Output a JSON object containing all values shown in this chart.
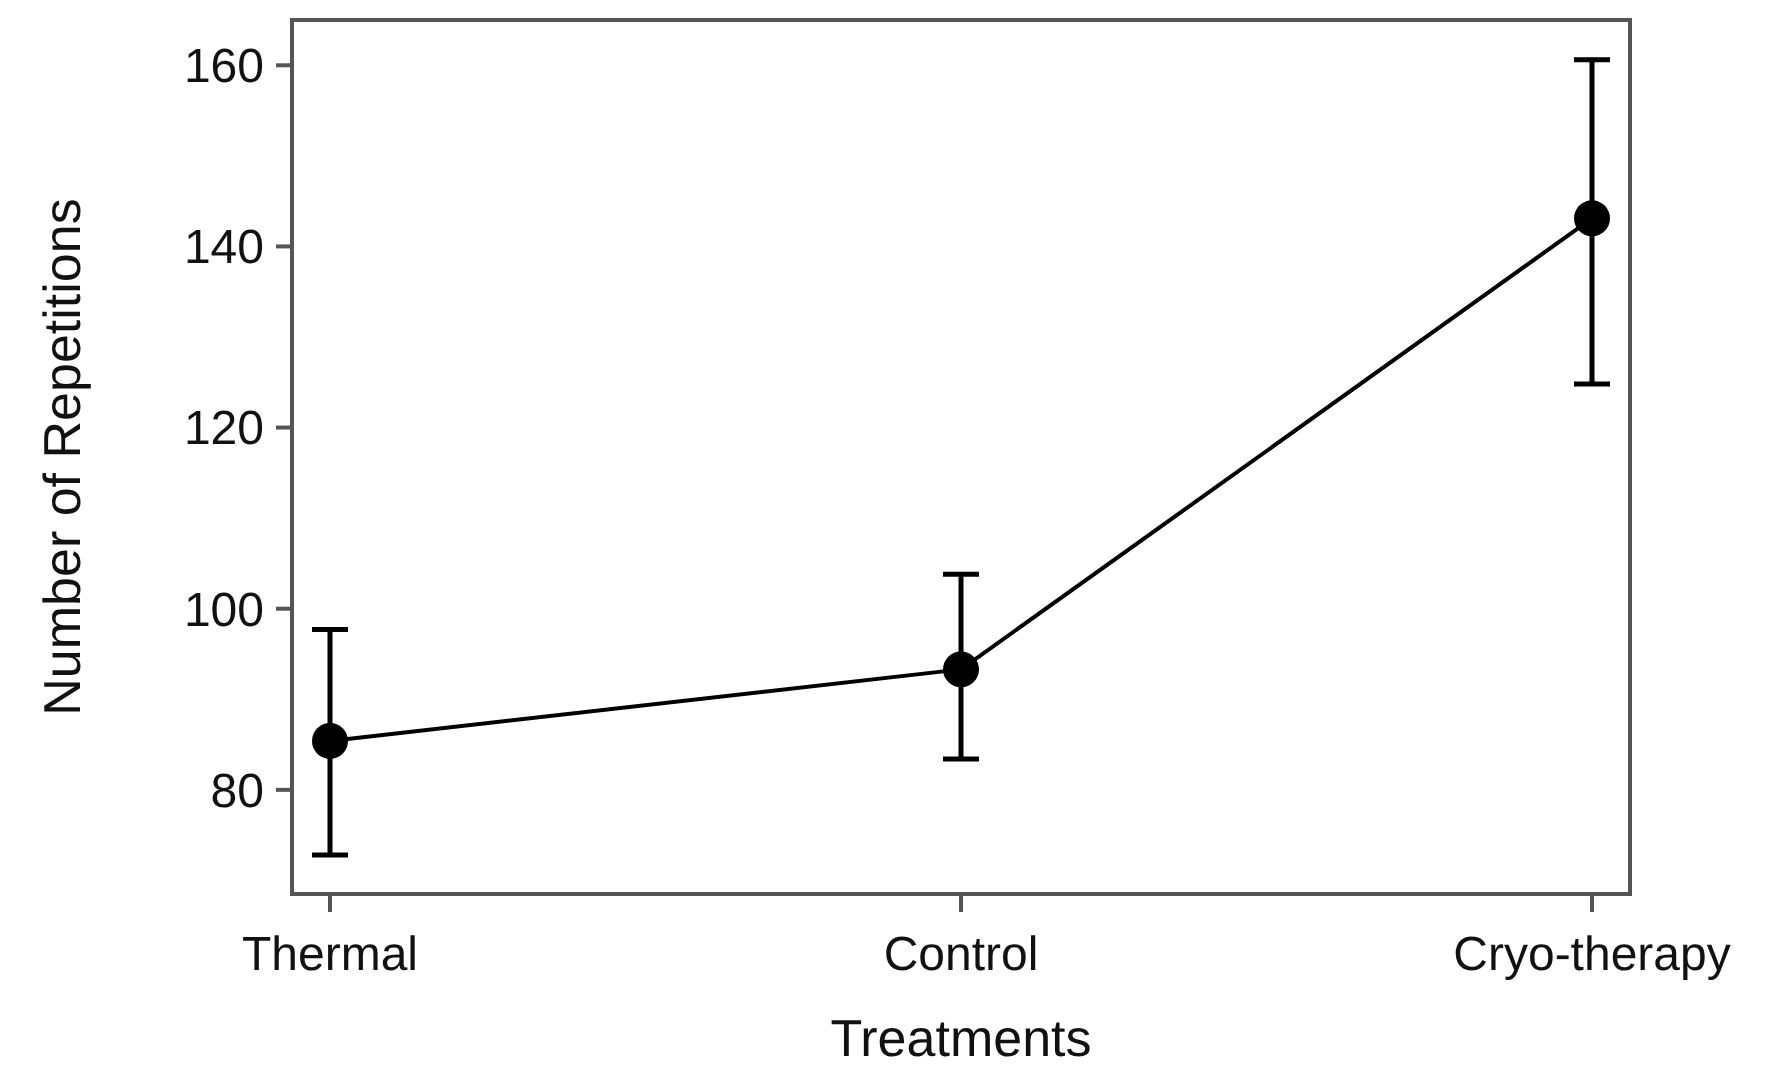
{
  "chart_data": {
    "type": "line",
    "xlabel": "Treatments",
    "ylabel": "Number of Repetitions",
    "categories": [
      "Thermal",
      "Control",
      "Cryo-therapy"
    ],
    "series": [
      {
        "color": "#000000",
        "values": [
          85.4,
          93.3,
          143.1
        ],
        "errors": [
          [
            72.8,
            97.7
          ],
          [
            83.4,
            103.8
          ],
          [
            124.8,
            160.6
          ]
        ]
      }
    ],
    "ylim": [
      68.5,
      165
    ],
    "yticks": [
      80,
      100,
      120,
      140,
      160
    ],
    "grid": false,
    "marker": "circle",
    "line_style": "solid"
  }
}
